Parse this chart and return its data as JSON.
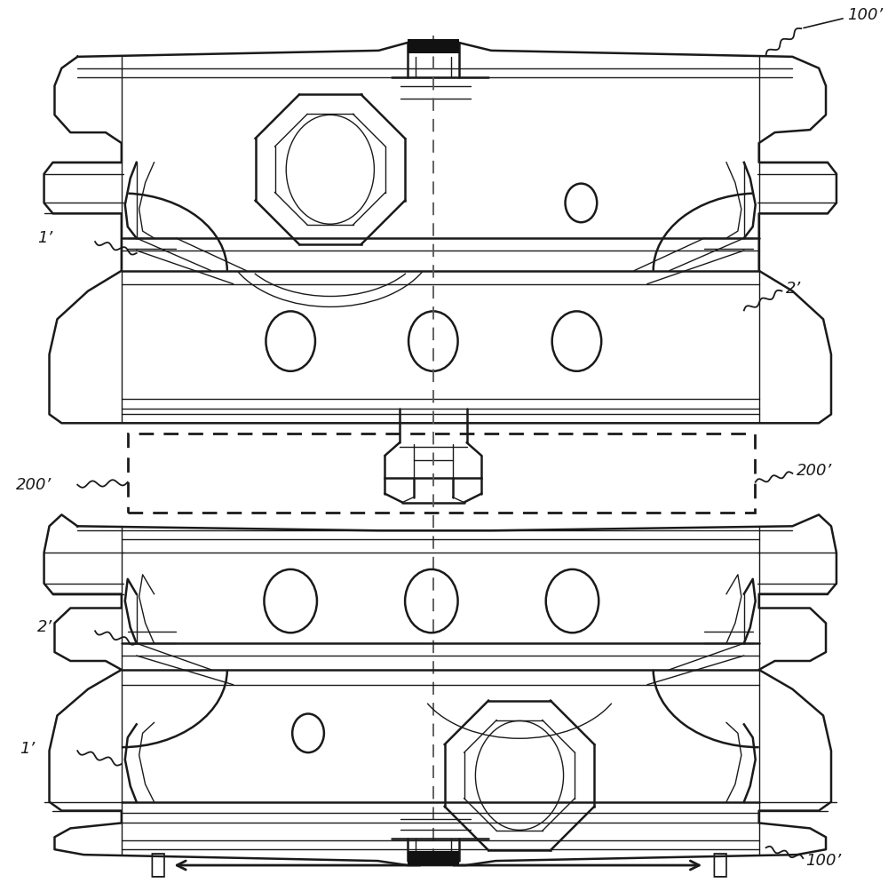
{
  "bg_color": "#ffffff",
  "line_color": "#1a1a1a",
  "figure_width": 10.0,
  "figure_height": 9.94,
  "dpi": 100,
  "labels": {
    "100p_tr": "100’",
    "100p_br": "100’",
    "200p_l": "200’",
    "200p_r": "200’",
    "1p_tl": "1’",
    "1p_bl": "1’",
    "2p_tr": "2’",
    "2p_bl": "2’",
    "left": "左",
    "right": "右"
  }
}
